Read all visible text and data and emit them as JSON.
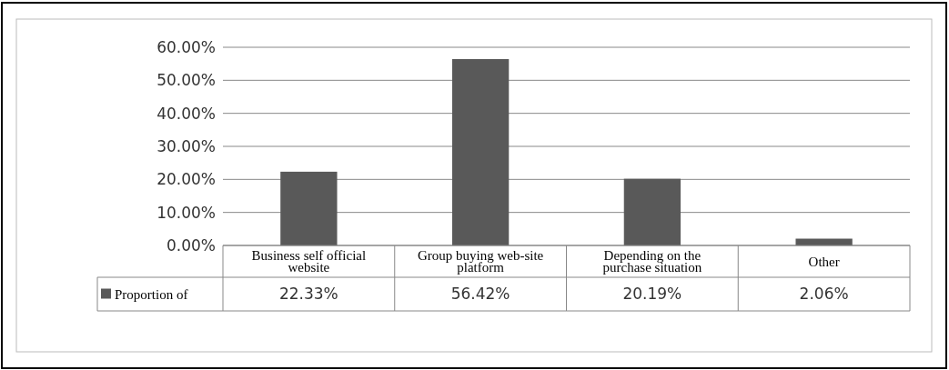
{
  "chart_data": {
    "type": "bar",
    "categories": [
      "Business self official website",
      "Group buying web-site platform",
      "Depending on the purchase situation",
      "Other"
    ],
    "series": [
      {
        "name": "Proportion of",
        "color": "#595959",
        "values": [
          22.33,
          56.42,
          20.19,
          2.06
        ]
      }
    ],
    "value_labels": [
      "22.33%",
      "56.42%",
      "20.19%",
      "2.06%"
    ],
    "ylim": [
      0,
      60
    ],
    "yticks": [
      {
        "value": 0,
        "label": "0.00%"
      },
      {
        "value": 10,
        "label": "10.00%"
      },
      {
        "value": 20,
        "label": "20.00%"
      },
      {
        "value": 30,
        "label": "30.00%"
      },
      {
        "value": 40,
        "label": "40.00%"
      },
      {
        "value": 50,
        "label": "50.00%"
      },
      {
        "value": 60,
        "label": "60.00%"
      }
    ],
    "grid": "y",
    "legend": "bottom left"
  }
}
